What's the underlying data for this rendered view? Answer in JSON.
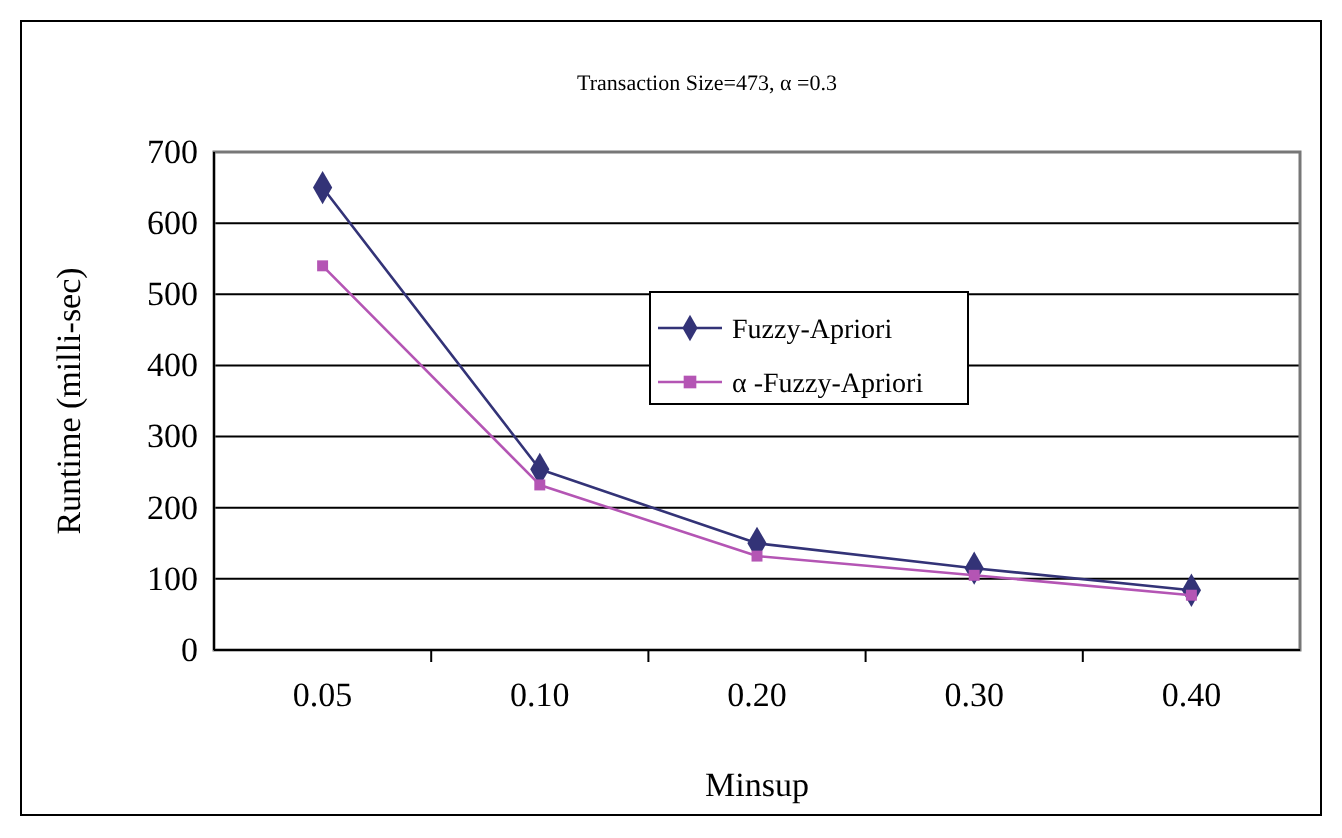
{
  "chart_data": {
    "type": "line",
    "title": "Transaction Size=473,  α =0.3",
    "xlabel": "Minsup",
    "ylabel": "Runtime (milli-sec)",
    "categories": [
      "0.05",
      "0.10",
      "0.20",
      "0.30",
      "0.40"
    ],
    "series": [
      {
        "name": "Fuzzy-Apriori",
        "color": "#333377",
        "marker": "diamond",
        "values": [
          650,
          254,
          150,
          115,
          84
        ]
      },
      {
        "name": "α -Fuzzy-Apriori",
        "color": "#b455b4",
        "marker": "square",
        "values": [
          540,
          232,
          132,
          105,
          77
        ]
      }
    ],
    "ylim": [
      0,
      700
    ],
    "yticks": [
      0,
      100,
      200,
      300,
      400,
      500,
      600,
      700
    ],
    "grid": "y",
    "legend": "center"
  }
}
